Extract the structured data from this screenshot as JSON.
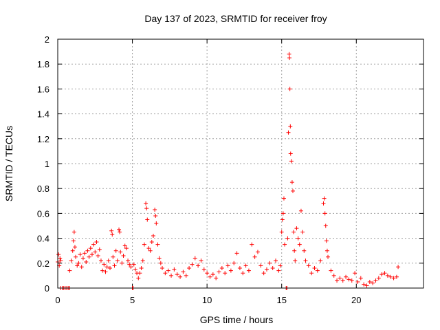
{
  "chart_data": {
    "type": "scatter",
    "title": "Day 137 of 2023, SRMTID for receiver froy",
    "xlabel": "GPS time / hours",
    "ylabel": "SRMTID / TECUs",
    "xlim": [
      0,
      24.5
    ],
    "ylim": [
      0,
      2
    ],
    "xticks": [
      0,
      5,
      10,
      15,
      20
    ],
    "yticks": [
      0,
      0.2,
      0.4,
      0.6,
      0.8,
      1,
      1.2,
      1.4,
      1.6,
      1.8,
      2
    ],
    "ytick_labels": [
      "0",
      "0.2",
      "0.4",
      "0.6",
      "0.8",
      "1",
      "1.2",
      "1.4",
      "1.6",
      "1.8",
      "2"
    ],
    "grid": true,
    "marker": "+",
    "series": [
      {
        "name": "SRMTID",
        "color": "#ff0000",
        "points": [
          [
            0.0,
            0.21
          ],
          [
            0.05,
            0.27
          ],
          [
            0.1,
            0.18
          ],
          [
            0.15,
            0.24
          ],
          [
            0.2,
            0.22
          ],
          [
            0.2,
            0.0
          ],
          [
            0.3,
            0.0
          ],
          [
            0.4,
            0.0
          ],
          [
            0.5,
            0.0
          ],
          [
            0.6,
            0.0
          ],
          [
            0.7,
            0.0
          ],
          [
            0.8,
            0.0
          ],
          [
            0.8,
            0.14
          ],
          [
            0.9,
            0.22
          ],
          [
            1.0,
            0.3
          ],
          [
            1.05,
            0.38
          ],
          [
            1.1,
            0.45
          ],
          [
            1.15,
            0.33
          ],
          [
            1.2,
            0.25
          ],
          [
            1.3,
            0.18
          ],
          [
            1.4,
            0.2
          ],
          [
            1.5,
            0.27
          ],
          [
            1.6,
            0.17
          ],
          [
            1.7,
            0.24
          ],
          [
            1.8,
            0.28
          ],
          [
            1.9,
            0.21
          ],
          [
            2.0,
            0.3
          ],
          [
            2.1,
            0.25
          ],
          [
            2.2,
            0.32
          ],
          [
            2.3,
            0.27
          ],
          [
            2.4,
            0.35
          ],
          [
            2.5,
            0.29
          ],
          [
            2.6,
            0.37
          ],
          [
            2.7,
            0.26
          ],
          [
            2.8,
            0.31
          ],
          [
            2.9,
            0.22
          ],
          [
            3.0,
            0.14
          ],
          [
            3.1,
            0.19
          ],
          [
            3.2,
            0.13
          ],
          [
            3.3,
            0.17
          ],
          [
            3.4,
            0.22
          ],
          [
            3.5,
            0.16
          ],
          [
            3.6,
            0.46
          ],
          [
            3.65,
            0.43
          ],
          [
            3.7,
            0.25
          ],
          [
            3.8,
            0.18
          ],
          [
            3.9,
            0.3
          ],
          [
            4.0,
            0.22
          ],
          [
            4.1,
            0.47
          ],
          [
            4.15,
            0.45
          ],
          [
            4.2,
            0.29
          ],
          [
            4.3,
            0.2
          ],
          [
            4.4,
            0.26
          ],
          [
            4.5,
            0.34
          ],
          [
            4.6,
            0.32
          ],
          [
            4.7,
            0.22
          ],
          [
            4.8,
            0.19
          ],
          [
            4.9,
            0.17
          ],
          [
            5.0,
            0.0
          ],
          [
            5.05,
            0.0
          ],
          [
            5.1,
            0.19
          ],
          [
            5.2,
            0.15
          ],
          [
            5.3,
            0.12
          ],
          [
            5.4,
            0.08
          ],
          [
            5.5,
            0.12
          ],
          [
            5.6,
            0.16
          ],
          [
            5.7,
            0.22
          ],
          [
            5.8,
            0.35
          ],
          [
            5.9,
            0.68
          ],
          [
            5.95,
            0.64
          ],
          [
            6.0,
            0.55
          ],
          [
            6.1,
            0.32
          ],
          [
            6.2,
            0.3
          ],
          [
            6.3,
            0.37
          ],
          [
            6.4,
            0.42
          ],
          [
            6.5,
            0.63
          ],
          [
            6.55,
            0.58
          ],
          [
            6.6,
            0.52
          ],
          [
            6.7,
            0.35
          ],
          [
            6.8,
            0.24
          ],
          [
            6.9,
            0.2
          ],
          [
            7.0,
            0.16
          ],
          [
            7.2,
            0.12
          ],
          [
            7.4,
            0.14
          ],
          [
            7.6,
            0.1
          ],
          [
            7.8,
            0.15
          ],
          [
            8.0,
            0.11
          ],
          [
            8.2,
            0.09
          ],
          [
            8.4,
            0.13
          ],
          [
            8.6,
            0.1
          ],
          [
            8.8,
            0.16
          ],
          [
            9.0,
            0.19
          ],
          [
            9.2,
            0.24
          ],
          [
            9.4,
            0.18
          ],
          [
            9.6,
            0.22
          ],
          [
            9.8,
            0.15
          ],
          [
            10.0,
            0.12
          ],
          [
            10.2,
            0.09
          ],
          [
            10.4,
            0.11
          ],
          [
            10.6,
            0.08
          ],
          [
            10.8,
            0.13
          ],
          [
            11.0,
            0.16
          ],
          [
            11.2,
            0.12
          ],
          [
            11.4,
            0.18
          ],
          [
            11.6,
            0.14
          ],
          [
            11.8,
            0.2
          ],
          [
            12.0,
            0.28
          ],
          [
            12.2,
            0.16
          ],
          [
            12.4,
            0.12
          ],
          [
            12.6,
            0.18
          ],
          [
            12.8,
            0.14
          ],
          [
            13.0,
            0.35
          ],
          [
            13.2,
            0.25
          ],
          [
            13.4,
            0.29
          ],
          [
            13.6,
            0.18
          ],
          [
            13.8,
            0.12
          ],
          [
            14.0,
            0.15
          ],
          [
            14.2,
            0.2
          ],
          [
            14.4,
            0.16
          ],
          [
            14.6,
            0.22
          ],
          [
            14.8,
            0.14
          ],
          [
            14.9,
            0.18
          ],
          [
            15.0,
            0.45
          ],
          [
            15.05,
            0.55
          ],
          [
            15.1,
            0.6
          ],
          [
            15.15,
            0.72
          ],
          [
            15.2,
            0.35
          ],
          [
            15.3,
            0.0
          ],
          [
            15.35,
            0.0
          ],
          [
            15.4,
            0.4
          ],
          [
            15.45,
            1.25
          ],
          [
            15.5,
            1.88
          ],
          [
            15.52,
            1.85
          ],
          [
            15.55,
            1.6
          ],
          [
            15.58,
            1.3
          ],
          [
            15.6,
            1.08
          ],
          [
            15.65,
            1.02
          ],
          [
            15.7,
            0.85
          ],
          [
            15.75,
            0.78
          ],
          [
            15.8,
            0.45
          ],
          [
            15.85,
            0.3
          ],
          [
            15.9,
            0.22
          ],
          [
            16.0,
            0.48
          ],
          [
            16.1,
            0.4
          ],
          [
            16.2,
            0.35
          ],
          [
            16.3,
            0.62
          ],
          [
            16.4,
            0.45
          ],
          [
            16.5,
            0.3
          ],
          [
            16.6,
            0.22
          ],
          [
            16.8,
            0.18
          ],
          [
            17.0,
            0.12
          ],
          [
            17.2,
            0.16
          ],
          [
            17.4,
            0.14
          ],
          [
            17.6,
            0.22
          ],
          [
            17.8,
            0.68
          ],
          [
            17.85,
            0.72
          ],
          [
            17.9,
            0.6
          ],
          [
            17.95,
            0.5
          ],
          [
            18.0,
            0.38
          ],
          [
            18.05,
            0.3
          ],
          [
            18.1,
            0.25
          ],
          [
            18.3,
            0.14
          ],
          [
            18.5,
            0.1
          ],
          [
            18.7,
            0.06
          ],
          [
            18.9,
            0.08
          ],
          [
            19.1,
            0.06
          ],
          [
            19.3,
            0.09
          ],
          [
            19.5,
            0.07
          ],
          [
            19.7,
            0.06
          ],
          [
            19.9,
            0.12
          ],
          [
            20.1,
            0.05
          ],
          [
            20.3,
            0.08
          ],
          [
            20.5,
            0.03
          ],
          [
            20.7,
            0.02
          ],
          [
            20.9,
            0.05
          ],
          [
            21.1,
            0.04
          ],
          [
            21.3,
            0.06
          ],
          [
            21.5,
            0.08
          ],
          [
            21.7,
            0.11
          ],
          [
            21.9,
            0.12
          ],
          [
            22.1,
            0.1
          ],
          [
            22.3,
            0.09
          ],
          [
            22.5,
            0.08
          ],
          [
            22.7,
            0.09
          ],
          [
            22.8,
            0.17
          ]
        ]
      }
    ]
  }
}
